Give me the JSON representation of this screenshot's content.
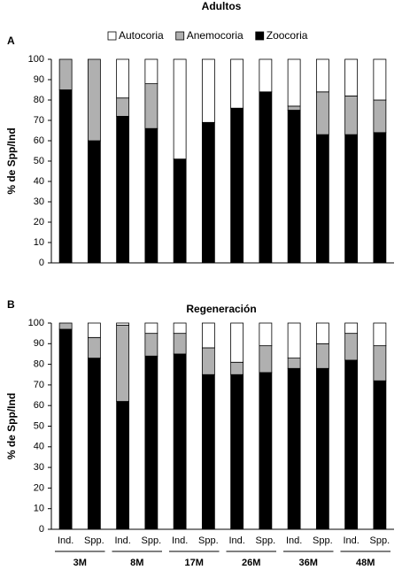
{
  "chart_data": [
    {
      "type": "stacked_bar",
      "title": "Adultos",
      "panel_label": "A",
      "ylabel": "% de Spp/Ind",
      "ylim": [
        0,
        100
      ],
      "yticks": [
        0,
        10,
        20,
        30,
        40,
        50,
        60,
        70,
        80,
        90,
        100
      ],
      "legend": "top",
      "series": [
        {
          "name": "Zoocoria",
          "color": "#000000",
          "values": [
            85,
            60,
            72,
            66,
            51,
            69,
            76,
            84,
            75,
            63,
            63,
            64
          ]
        },
        {
          "name": "Anemocoria",
          "color": "#b0b0b0",
          "values": [
            15,
            40,
            9,
            22,
            0,
            0,
            0,
            0,
            2,
            21,
            19,
            16
          ]
        },
        {
          "name": "Autocoria",
          "color": "#ffffff",
          "values": [
            0,
            0,
            19,
            12,
            49,
            31,
            24,
            16,
            23,
            16,
            18,
            20
          ]
        }
      ]
    },
    {
      "type": "stacked_bar",
      "title": "Regeneración",
      "panel_label": "B",
      "ylabel": "% de Spp/Ind",
      "ylim": [
        0,
        100
      ],
      "yticks": [
        0,
        10,
        20,
        30,
        40,
        50,
        60,
        70,
        80,
        90,
        100
      ],
      "categories": [
        "Ind.",
        "Spp.",
        "Ind.",
        "Spp.",
        "Ind.",
        "Spp.",
        "Ind.",
        "Spp.",
        "Ind.",
        "Spp.",
        "Ind.",
        "Spp."
      ],
      "groups": [
        "3M",
        "8M",
        "17M",
        "26M",
        "36M",
        "48M"
      ],
      "series": [
        {
          "color": "#000000",
          "values": [
            97,
            83,
            62,
            84,
            85,
            75,
            75,
            76,
            78,
            78,
            82,
            72
          ]
        },
        {
          "color": "#b0b0b0",
          "values": [
            3,
            10,
            37,
            11,
            10,
            13,
            6,
            13,
            5,
            12,
            13,
            17
          ]
        },
        {
          "color": "#ffffff",
          "values": [
            0,
            7,
            1,
            5,
            5,
            12,
            19,
            11,
            17,
            10,
            5,
            11
          ]
        }
      ]
    }
  ]
}
